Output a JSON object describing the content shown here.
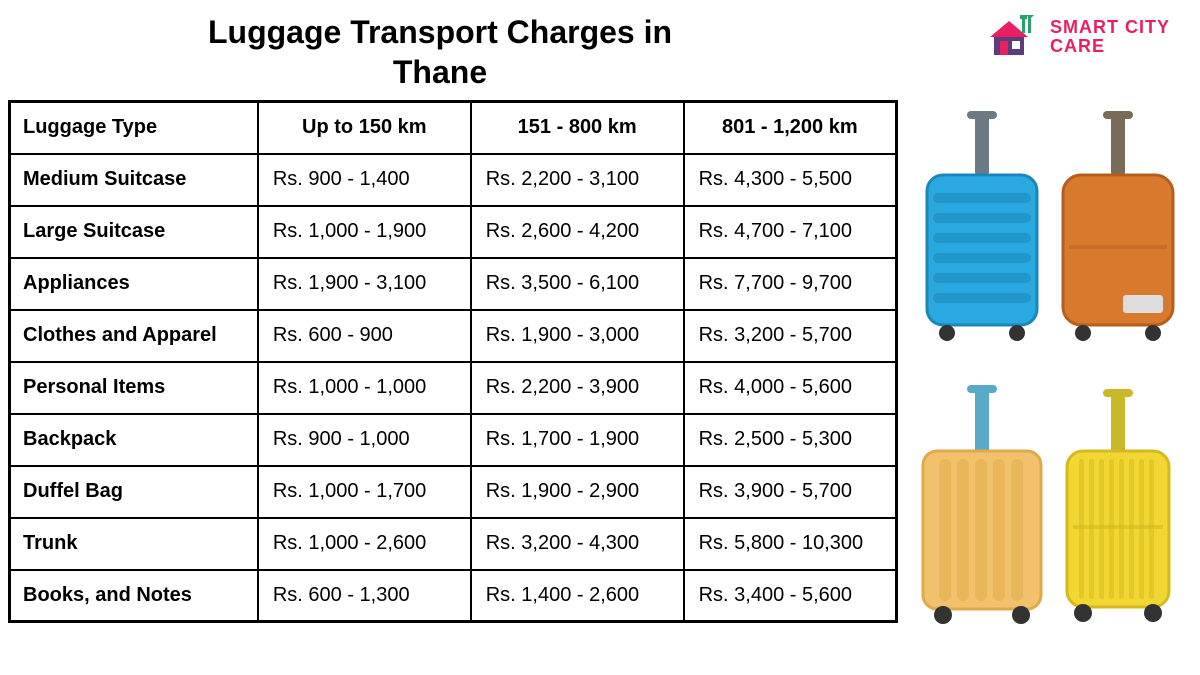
{
  "title": "Luggage Transport Charges in Thane",
  "logo": {
    "line1": "SMART CITY",
    "line2": "CARE"
  },
  "table": {
    "columns": [
      "Luggage Type",
      "Up to 150 km",
      "151 - 800 km",
      "801 - 1,200 km"
    ],
    "rows": [
      [
        "Medium Suitcase",
        "Rs. 900 - 1,400",
        "Rs. 2,200 - 3,100",
        "Rs. 4,300 - 5,500"
      ],
      [
        "Large Suitcase",
        "Rs. 1,000 - 1,900",
        "Rs. 2,600 - 4,200",
        "Rs. 4,700 - 7,100"
      ],
      [
        "Appliances",
        "Rs. 1,900 - 3,100",
        "Rs. 3,500 - 6,100",
        "Rs. 7,700 - 9,700"
      ],
      [
        "Clothes and Apparel",
        "Rs. 600 - 900",
        "Rs. 1,900 - 3,000",
        "Rs. 3,200 - 5,700"
      ],
      [
        "Personal Items",
        "Rs. 1,000 - 1,000",
        "Rs. 2,200 - 3,900",
        "Rs. 4,000 - 5,600"
      ],
      [
        "Backpack",
        "Rs. 900 - 1,000",
        "Rs. 1,700 - 1,900",
        "Rs. 2,500 - 5,300"
      ],
      [
        "Duffel Bag",
        "Rs. 1,000 - 1,700",
        "Rs. 1,900 - 2,900",
        "Rs. 3,900 - 5,700"
      ],
      [
        "Trunk",
        "Rs. 1,000 - 2,600",
        "Rs. 3,200 - 4,300",
        "Rs. 5,800 - 10,300"
      ],
      [
        "Books, and Notes",
        "Rs. 600 - 1,300",
        "Rs. 1,400 - 2,600",
        "Rs. 3,400 - 5,600"
      ]
    ],
    "col_widths": [
      "28%",
      "24%",
      "24%",
      "24%"
    ],
    "header_fontsize": 21,
    "cell_fontsize": 20,
    "border_color": "#000000"
  },
  "suitcases": {
    "top_row": [
      {
        "body": "#29a9e0",
        "shade": "#1b87b8",
        "handle": "#6b7a85"
      },
      {
        "body": "#d87a2e",
        "shade": "#b55f1d",
        "handle": "#7a6a58"
      }
    ],
    "bottom_row": [
      {
        "body": "#f2c16b",
        "shade": "#e0a94a",
        "handle": "#5aa9c9"
      },
      {
        "body": "#f2d733",
        "shade": "#d4b920",
        "handle": "#c9b92a"
      }
    ]
  },
  "logo_colors": {
    "roof": "#e91e63",
    "wall": "#5a3d7a",
    "tool": "#2aa36b",
    "text": "#e91e63"
  },
  "background_color": "#ffffff"
}
